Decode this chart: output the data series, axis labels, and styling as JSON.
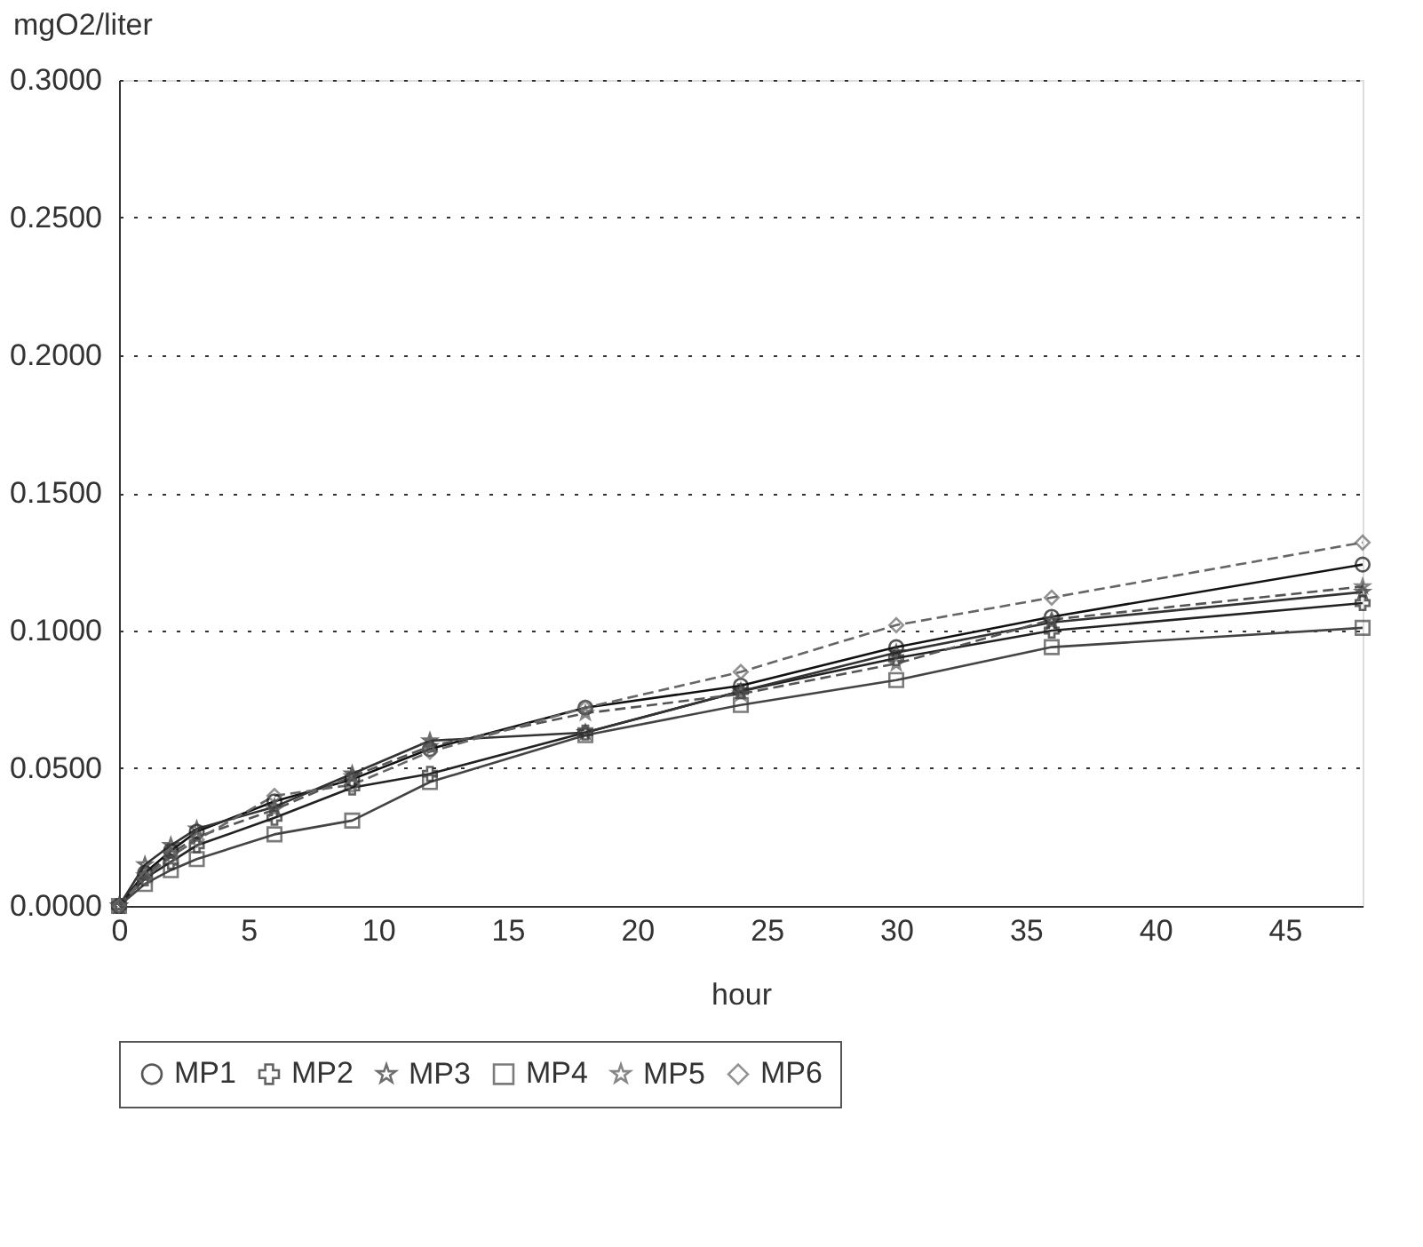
{
  "chart_data": {
    "type": "line",
    "xlabel": "hour",
    "ylabel": "mgO2/liter",
    "x": [
      0,
      1,
      2,
      3,
      6,
      9,
      12,
      18,
      24,
      30,
      36,
      48
    ],
    "xlim": [
      0,
      48
    ],
    "xticks": [
      0,
      5,
      10,
      15,
      20,
      25,
      30,
      35,
      40,
      45
    ],
    "ylim": [
      0,
      0.3
    ],
    "yticks": [
      {
        "value": 0,
        "label": "0.0000"
      },
      {
        "value": 0.05,
        "label": "0.0500"
      },
      {
        "value": 0.1,
        "label": "0.1000"
      },
      {
        "value": 0.15,
        "label": "0.1500"
      },
      {
        "value": 0.2,
        "label": "0.2000"
      },
      {
        "value": 0.25,
        "label": "0.2500"
      },
      {
        "value": 0.3,
        "label": "0.3000"
      }
    ],
    "grid": "y",
    "legend": "bottom",
    "series": [
      {
        "name": "MP1",
        "color": "#111111",
        "marker": "circle",
        "line_style": "solid",
        "values": [
          0,
          0.012,
          0.02,
          0.027,
          0.038,
          0.046,
          0.057,
          0.072,
          0.08,
          0.094,
          0.105,
          0.124
        ]
      },
      {
        "name": "MP2",
        "color": "#222222",
        "marker": "cross",
        "line_style": "solid",
        "values": [
          0,
          0.01,
          0.016,
          0.022,
          0.032,
          0.043,
          0.048,
          0.063,
          0.078,
          0.09,
          0.1,
          0.11
        ]
      },
      {
        "name": "MP3",
        "color": "#333333",
        "marker": "star",
        "line_style": "solid",
        "values": [
          0,
          0.015,
          0.022,
          0.028,
          0.036,
          0.048,
          0.06,
          0.063,
          0.078,
          0.092,
          0.103,
          0.114
        ]
      },
      {
        "name": "MP4",
        "color": "#444444",
        "marker": "square",
        "line_style": "solid",
        "values": [
          0,
          0.008,
          0.013,
          0.017,
          0.026,
          0.031,
          0.045,
          0.062,
          0.073,
          0.082,
          0.094,
          0.101
        ]
      },
      {
        "name": "MP5",
        "color": "#555555",
        "marker": "star",
        "line_style": "dashed",
        "values": [
          0,
          0.011,
          0.019,
          0.025,
          0.035,
          0.047,
          0.058,
          0.07,
          0.077,
          0.088,
          0.104,
          0.116
        ]
      },
      {
        "name": "MP6",
        "color": "#666666",
        "marker": "diamond",
        "line_style": "dashed",
        "values": [
          0,
          0.01,
          0.018,
          0.024,
          0.04,
          0.044,
          0.056,
          0.072,
          0.085,
          0.102,
          0.112,
          0.132
        ]
      }
    ]
  }
}
